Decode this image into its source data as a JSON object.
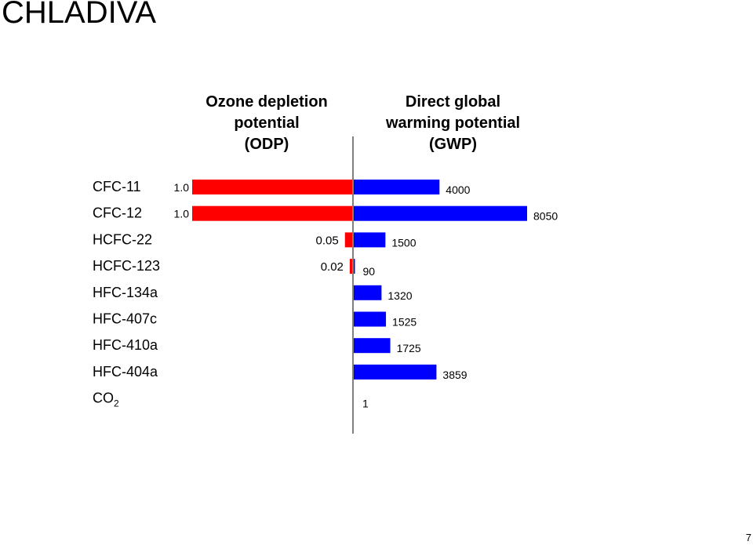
{
  "page": {
    "title": "CHLADIVA",
    "page_number": "7"
  },
  "chart_data": {
    "type": "bar",
    "orientation": "horizontal",
    "layout": "back-to-back",
    "categories": [
      "CFC-11",
      "CFC-12",
      "HCFC-22",
      "HCFC-123",
      "HFC-134a",
      "HFC-407c",
      "HFC-410a",
      "HFC-404a",
      "CO2"
    ],
    "category_labels": [
      {
        "main": "CFC-11",
        "sub": ""
      },
      {
        "main": "CFC-12",
        "sub": ""
      },
      {
        "main": "HCFC-22",
        "sub": ""
      },
      {
        "main": "HCFC-123",
        "sub": ""
      },
      {
        "main": "HFC-134a",
        "sub": ""
      },
      {
        "main": "HFC-407c",
        "sub": ""
      },
      {
        "main": "HFC-410a",
        "sub": ""
      },
      {
        "main": "HFC-404a",
        "sub": ""
      },
      {
        "main": "CO",
        "sub": "2"
      }
    ],
    "series": [
      {
        "name": "Ozone depletion potential (ODP)",
        "heading_lines": [
          "Ozone depletion",
          "potential",
          "(ODP)"
        ],
        "color": "#ff0000",
        "direction": "left",
        "values": [
          1.0,
          1.0,
          0.05,
          0.02,
          0,
          0,
          0,
          0,
          0
        ],
        "labels": [
          "1.0",
          "1.0",
          "0.05",
          "0.02",
          "",
          "",
          "",
          "",
          ""
        ]
      },
      {
        "name": "Direct global warming potential (GWP)",
        "heading_lines": [
          "Direct global",
          "warming potential",
          "(GWP)"
        ],
        "color": "#0000ff",
        "direction": "right",
        "values": [
          4000,
          8050,
          1500,
          90,
          1320,
          1525,
          1725,
          3859,
          1
        ],
        "labels": [
          "4000",
          "8050",
          "1500",
          "90",
          "1320",
          "1525",
          "1725",
          "3859",
          "1"
        ]
      }
    ],
    "axis_color": "#808080"
  }
}
